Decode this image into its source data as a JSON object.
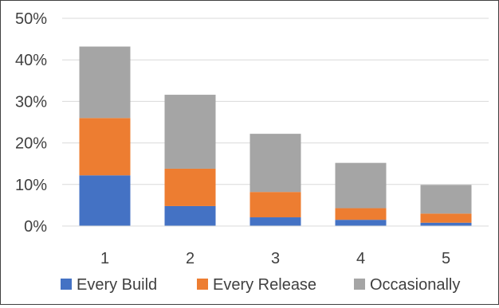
{
  "chart_data": {
    "type": "bar",
    "stacked": true,
    "categories": [
      "1",
      "2",
      "3",
      "4",
      "5"
    ],
    "series": [
      {
        "name": "Every Build",
        "values": [
          12.2,
          4.8,
          2.1,
          1.5,
          0.8
        ],
        "color": "#4472C4"
      },
      {
        "name": "Every Release",
        "values": [
          13.8,
          9.0,
          6.1,
          2.8,
          2.2
        ],
        "color": "#ED7D31"
      },
      {
        "name": "Occasionally",
        "values": [
          17.2,
          17.8,
          14.0,
          10.9,
          6.9
        ],
        "color": "#A5A5A5"
      }
    ],
    "ylim": [
      0,
      50
    ],
    "yticks": [
      "0%",
      "10%",
      "20%",
      "30%",
      "40%",
      "50%"
    ],
    "ytick_values": [
      0,
      10,
      20,
      30,
      40,
      50
    ],
    "grid": true,
    "legend_position": "bottom",
    "title": "",
    "xlabel": "",
    "ylabel": ""
  }
}
